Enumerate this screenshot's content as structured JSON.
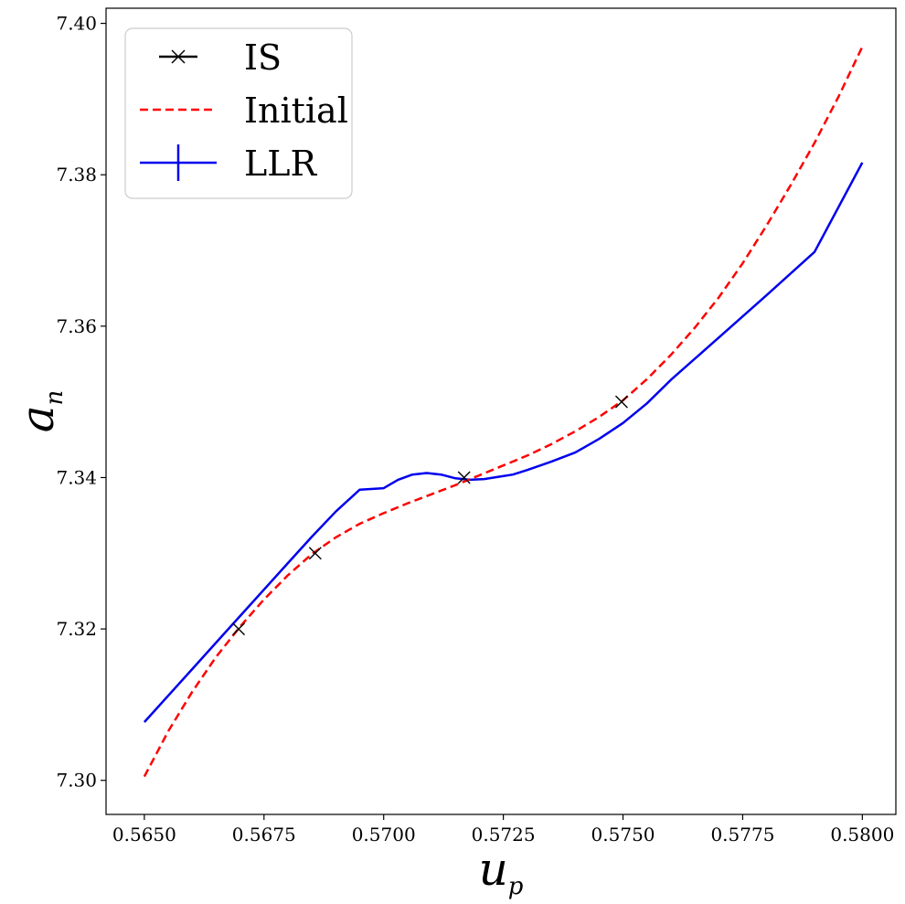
{
  "chart_data": {
    "type": "line",
    "xlabel": {
      "main": "u",
      "sub": "p"
    },
    "ylabel": {
      "main": "a",
      "sub": "n"
    },
    "xlim": [
      0.5642,
      0.5807
    ],
    "ylim": [
      7.2955,
      7.402
    ],
    "xticks": [
      0.565,
      0.5675,
      0.57,
      0.5725,
      0.575,
      0.5775,
      0.58
    ],
    "xtick_labels": [
      "0.5650",
      "0.5675",
      "0.5700",
      "0.5725",
      "0.5750",
      "0.5775",
      "0.5800"
    ],
    "yticks": [
      7.3,
      7.32,
      7.34,
      7.36,
      7.38,
      7.4
    ],
    "ytick_labels": [
      "7.30",
      "7.32",
      "7.34",
      "7.36",
      "7.38",
      "7.40"
    ],
    "legend_position": "top-left",
    "series": [
      {
        "name": "IS",
        "style": "markers-x",
        "color": "#000000",
        "x": [
          0.56697,
          0.56857,
          0.57168,
          0.57497
        ],
        "y": [
          7.32,
          7.33,
          7.34,
          7.35
        ]
      },
      {
        "name": "Initial",
        "style": "dashed",
        "color": "#ff0000",
        "x": [
          0.565,
          0.5655,
          0.566,
          0.5665,
          0.567,
          0.5675,
          0.568,
          0.5685,
          0.569,
          0.5695,
          0.57,
          0.5705,
          0.571,
          0.5715,
          0.572,
          0.5725,
          0.573,
          0.5735,
          0.574,
          0.5745,
          0.575,
          0.5755,
          0.576,
          0.5765,
          0.577,
          0.5775,
          0.578,
          0.5785,
          0.579,
          0.5795,
          0.58
        ],
        "y": [
          7.3005,
          7.3065,
          7.3117,
          7.3163,
          7.3203,
          7.3239,
          7.3271,
          7.3299,
          7.3321,
          7.3339,
          7.3353,
          7.3366,
          7.3378,
          7.339,
          7.3403,
          7.3416,
          7.3429,
          7.3444,
          7.3461,
          7.348,
          7.3502,
          7.353,
          7.3562,
          7.3598,
          7.3638,
          7.3683,
          7.3733,
          7.3786,
          7.3842,
          7.3903,
          7.3969
        ]
      },
      {
        "name": "LLR",
        "style": "solid",
        "color": "#0000ee",
        "x": [
          0.565,
          0.566,
          0.567,
          0.568,
          0.5685,
          0.569,
          0.5695,
          0.57,
          0.5703,
          0.5706,
          0.5709,
          0.5712,
          0.5715,
          0.5718,
          0.5721,
          0.5724,
          0.5727,
          0.573,
          0.5735,
          0.574,
          0.5745,
          0.575,
          0.5755,
          0.576,
          0.577,
          0.578,
          0.579,
          0.58
        ],
        "y": [
          7.3077,
          7.3147,
          7.3217,
          7.3287,
          7.3322,
          7.3355,
          7.3384,
          7.3386,
          7.3397,
          7.3404,
          7.3406,
          7.3404,
          7.3399,
          7.3397,
          7.3398,
          7.3401,
          7.3404,
          7.341,
          7.3421,
          7.3433,
          7.3451,
          7.3472,
          7.3498,
          7.3529,
          7.3585,
          7.3641,
          7.3698,
          7.3816
        ]
      }
    ],
    "legend": [
      {
        "label": "IS",
        "marker": "x",
        "color": "#000000"
      },
      {
        "label": "Initial",
        "marker": "dashed",
        "color": "#ff0000"
      },
      {
        "label": "LLR",
        "marker": "errorbar-line",
        "color": "#0000ee"
      }
    ]
  }
}
